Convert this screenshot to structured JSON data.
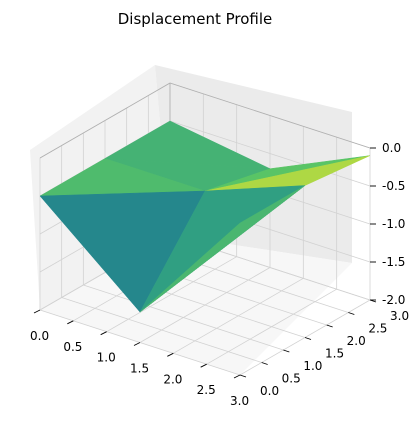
{
  "chart_data": {
    "type": "surface",
    "title": "Displacement Profile",
    "xlabel": "",
    "ylabel": "",
    "zlabel": "",
    "x": [
      0,
      1.5,
      3
    ],
    "y": [
      0,
      1.5,
      3
    ],
    "z": [
      [
        -0.5,
        -0.5,
        -0.5
      ],
      [
        -1.6,
        -0.5,
        -0.7
      ],
      [
        0,
        0,
        -0.1
      ]
    ],
    "xlim": [
      0,
      3
    ],
    "ylim": [
      0,
      3
    ],
    "zlim": [
      -2,
      0
    ],
    "x_ticks": [
      "0.0",
      "0.5",
      "1.0",
      "1.5",
      "2.0",
      "2.5",
      "3.0"
    ],
    "y_ticks": [
      "0.0",
      "0.5",
      "1.0",
      "1.5",
      "2.0",
      "2.5",
      "3.0"
    ],
    "z_ticks": [
      "0.0",
      "-0.5",
      "-1.0",
      "-1.5",
      "-2.0"
    ],
    "colormap": "viridis",
    "grid": true,
    "colors": {
      "low": "#440154",
      "mid": "#21918c",
      "high": "#fde725",
      "pane_left": "#f2f2f2",
      "pane_right": "#ebebeb",
      "pane_floor": "#f7f7f7"
    }
  }
}
